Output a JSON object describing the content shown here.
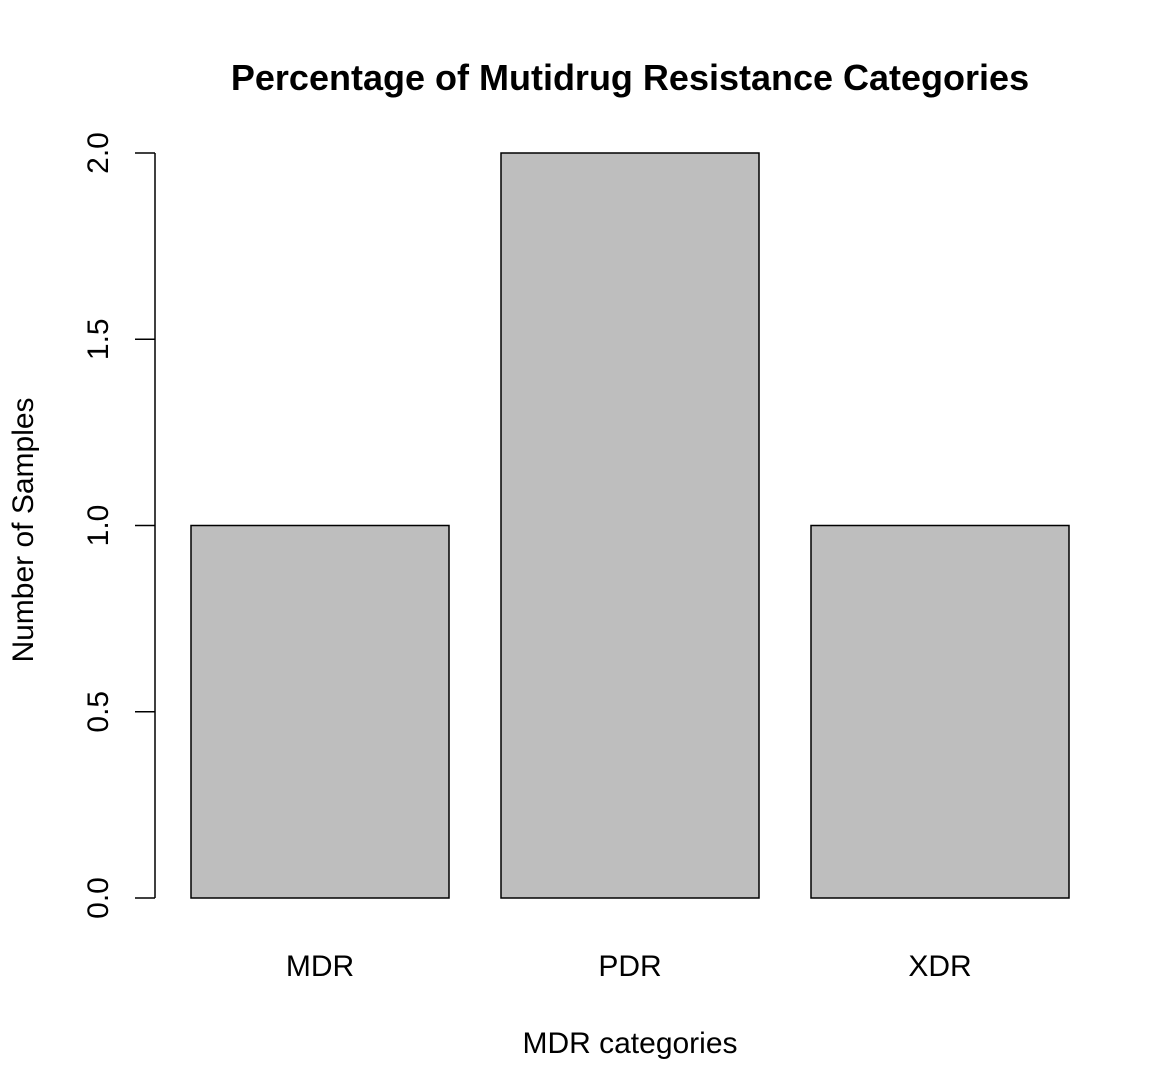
{
  "chart_data": {
    "type": "bar",
    "title": "Percentage of Mutidrug Resistance Categories",
    "xlabel": "MDR categories",
    "ylabel": "Number of Samples",
    "categories": [
      "MDR",
      "PDR",
      "XDR"
    ],
    "values": [
      1,
      2,
      1
    ],
    "ylim": [
      0,
      2
    ],
    "yticks": [
      0,
      0.5,
      1,
      1.5,
      2
    ],
    "ytick_labels": [
      "0.0",
      "0.5",
      "1.0",
      "1.5",
      "2.0"
    ],
    "bar_color": "#bebebe",
    "edge_color": "#000000",
    "grid": false,
    "legend": "none"
  }
}
